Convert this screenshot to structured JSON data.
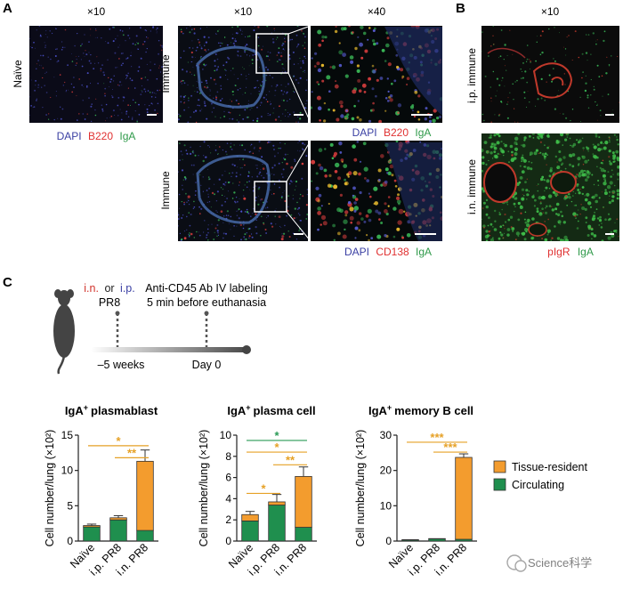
{
  "panel_a": {
    "letter": "A",
    "naive": {
      "mag": "×10",
      "row_label": "Naïve",
      "legend": {
        "dapi": "DAPI",
        "b220": "B220",
        "iga": "IgA"
      }
    },
    "immune_top": {
      "mag_low": "×10",
      "mag_high": "×40",
      "row_label": "Immune",
      "legend": {
        "dapi": "DAPI",
        "b220": "B220",
        "iga": "IgA"
      }
    },
    "immune_bottom": {
      "row_label": "Immune",
      "legend": {
        "dapi": "DAPI",
        "cd138": "CD138",
        "iga": "IgA"
      }
    }
  },
  "panel_b": {
    "letter": "B",
    "mag": "×10",
    "row_top": "i.p. immune",
    "row_bottom": "i.n. immune",
    "legend": {
      "pigr": "pIgR",
      "iga": "IgA"
    }
  },
  "panel_c": {
    "letter": "C",
    "timeline": {
      "in_label": "i.n.",
      "or_label": "or",
      "ip_label": "i.p.",
      "pr8": "PR8",
      "labeling_line1": "Anti-CD45 Ab IV labeling",
      "labeling_line2": "5 min before euthanasia",
      "start": "–5 weeks",
      "end": "Day 0"
    }
  },
  "legend": {
    "tissue_resident": "Tissue-resident",
    "circulating": "Circulating"
  },
  "watermark": "Science科学",
  "colors": {
    "tissue_resident": "#f39c2e",
    "circulating": "#1f8f4e",
    "sig_orange": "#e6a126",
    "sig_green": "#2a9a56",
    "dapi": "#3a3fa3",
    "red": "#e03131",
    "green": "#2f9a4a"
  },
  "chart_data": [
    {
      "type": "bar",
      "stacked": true,
      "title": "IgA",
      "title_sup": "+",
      "title_rest": "plasmablast",
      "ylabel": "Cell number/lung (×10²)",
      "categories": [
        "Naïve",
        "i.p. PR8",
        "i.n. PR8"
      ],
      "ylim": [
        0,
        15
      ],
      "yticks": [
        0,
        5,
        10,
        15
      ],
      "series": [
        {
          "name": "Circulating",
          "values": [
            2.0,
            3.0,
            1.5
          ],
          "errors": [
            0.4,
            0.6,
            0
          ]
        },
        {
          "name": "Tissue-resident",
          "values": [
            0.2,
            0.3,
            9.8
          ],
          "errors": [
            0,
            0,
            1.6
          ]
        }
      ],
      "significance": [
        {
          "from": 0,
          "to": 2,
          "label": "*",
          "color": "sig_orange",
          "y": 13.5
        },
        {
          "from": 1,
          "to": 2,
          "label": "**",
          "color": "sig_orange",
          "y": 11.8
        }
      ]
    },
    {
      "type": "bar",
      "stacked": true,
      "title": "IgA",
      "title_sup": "+",
      "title_rest": "plasma cell",
      "ylabel": "Cell number/lung (×10²)",
      "categories": [
        "Naïve",
        "i.p. PR8",
        "i.n. PR8"
      ],
      "ylim": [
        0,
        10
      ],
      "yticks": [
        0,
        2,
        4,
        6,
        8,
        10
      ],
      "series": [
        {
          "name": "Circulating",
          "values": [
            1.9,
            3.4,
            1.3
          ],
          "errors": [
            0,
            0,
            0
          ]
        },
        {
          "name": "Tissue-resident",
          "values": [
            0.6,
            0.3,
            4.8
          ],
          "errors": [
            0.3,
            0.7,
            0.9
          ]
        }
      ],
      "significance": [
        {
          "from": 0,
          "to": 2,
          "label": "*",
          "color": "sig_green",
          "y": 9.5
        },
        {
          "from": 0,
          "to": 2,
          "label": "*",
          "color": "sig_orange",
          "y": 8.4
        },
        {
          "from": 1,
          "to": 2,
          "label": "**",
          "color": "sig_orange",
          "y": 7.2
        },
        {
          "from": 0,
          "to": 1,
          "label": "*",
          "color": "sig_orange",
          "y": 4.5
        }
      ]
    },
    {
      "type": "bar",
      "stacked": true,
      "title": "IgA",
      "title_sup": "+",
      "title_rest": "memory B cell",
      "ylabel": "Cell number/lung (×10²)",
      "categories": [
        "Naïve",
        "i.p. PR8",
        "i.n. PR8"
      ],
      "ylim": [
        0,
        30
      ],
      "yticks": [
        0,
        10,
        20,
        30
      ],
      "series": [
        {
          "name": "Circulating",
          "values": [
            0.3,
            0.6,
            0.5
          ],
          "errors": [
            0,
            0,
            0
          ]
        },
        {
          "name": "Tissue-resident",
          "values": [
            0.1,
            0.1,
            23.2
          ],
          "errors": [
            0,
            0,
            1.0
          ]
        }
      ],
      "significance": [
        {
          "from": 0,
          "to": 2,
          "label": "***",
          "color": "sig_orange",
          "y": 28.0
        },
        {
          "from": 1,
          "to": 2,
          "label": "***",
          "color": "sig_orange",
          "y": 25.2
        }
      ]
    }
  ]
}
